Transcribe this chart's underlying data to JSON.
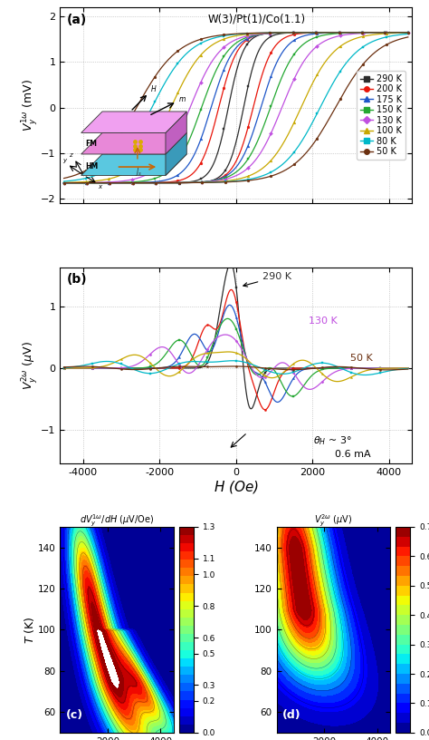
{
  "title_a": "W(3)/Pt(1)/Co(1.1)",
  "panel_a_label": "(a)",
  "panel_b_label": "(b)",
  "panel_c_label": "(c)",
  "panel_d_label": "(d)",
  "temperatures": [
    290,
    200,
    175,
    150,
    130,
    100,
    80,
    50
  ],
  "colors": [
    "#2d2d2d",
    "#e8150a",
    "#1e56c8",
    "#24a832",
    "#c050e0",
    "#c8a800",
    "#00b8c8",
    "#6b3010"
  ],
  "markers": [
    "s",
    "o",
    "^",
    "s",
    "D",
    "^",
    "s",
    "o"
  ],
  "ylabel_a": "$V^{1\\omega}_y$ (mV)",
  "ylabel_b": "$V^{2\\omega}_y$ ($\\mu$V)",
  "xlabel_ab": "$H$ (Oe)",
  "xlabel_c": "$H$ (Oe)",
  "xlabel_d": "$H$ (Oe)",
  "ylabel_cd": "$T$ (K)",
  "colorbar_label_c": "$dV^{1\\omega}_y/dH$ ($\\mu$V/Oe)",
  "colorbar_label_d": "$V^{2\\omega}_y$ ($\\mu$V)",
  "colorbar_ticks_c": [
    0.0,
    0.2,
    0.3,
    0.5,
    0.6,
    0.8,
    1.0,
    1.1,
    1.3
  ],
  "colorbar_ticks_d": [
    0.0,
    0.1,
    0.2,
    0.3,
    0.4,
    0.5,
    0.6,
    0.7
  ],
  "clim_c": [
    0.0,
    1.3
  ],
  "clim_d": [
    -0.05,
    0.7
  ]
}
